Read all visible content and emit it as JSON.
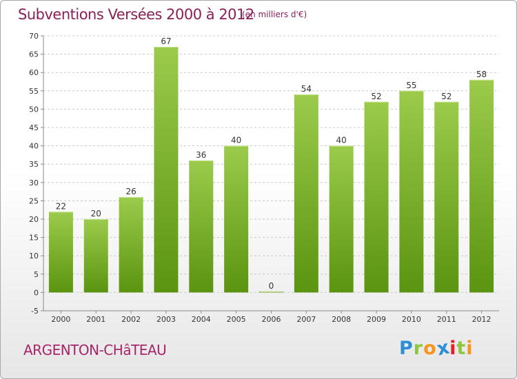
{
  "chart_data": {
    "type": "bar",
    "title": "Subventions Versées 2000 à 2012",
    "subtitle": "(en milliers d'€)",
    "categories": [
      "2000",
      "2001",
      "2002",
      "2003",
      "2004",
      "2005",
      "2006",
      "2007",
      "2008",
      "2009",
      "2010",
      "2011",
      "2012"
    ],
    "values": [
      22,
      20,
      26,
      67,
      36,
      40,
      0,
      54,
      40,
      52,
      55,
      52,
      58
    ],
    "data_labels": [
      "22",
      "20",
      "26",
      "67",
      "36",
      "40",
      "0",
      "54",
      "40",
      "52",
      "55",
      "52",
      "58"
    ],
    "y_ticks": [
      -5,
      0,
      5,
      10,
      15,
      20,
      25,
      30,
      35,
      40,
      45,
      50,
      55,
      60,
      65,
      70
    ],
    "y_tick_labels": [
      "-5",
      "0",
      "5",
      "10",
      "15",
      "20",
      "25",
      "30",
      "35",
      "40",
      "45",
      "50",
      "55",
      "60",
      "65",
      "70"
    ],
    "ylim": [
      -5,
      70
    ],
    "grid": true,
    "bar_color_top": "#9ccb4c",
    "bar_color_bottom": "#5a9410",
    "title_color": "#8b1f58"
  },
  "footer": {
    "commune": "ARGENTON-CHâTEAU",
    "logo": [
      "P",
      "r",
      "o",
      "x",
      "i",
      "t",
      "i"
    ],
    "logo_colors": [
      "#2e8fd6",
      "#8dc63f",
      "#f7941d",
      "#2e8fd6",
      "#ed1c24",
      "#8dc63f",
      "#f7941d"
    ]
  }
}
